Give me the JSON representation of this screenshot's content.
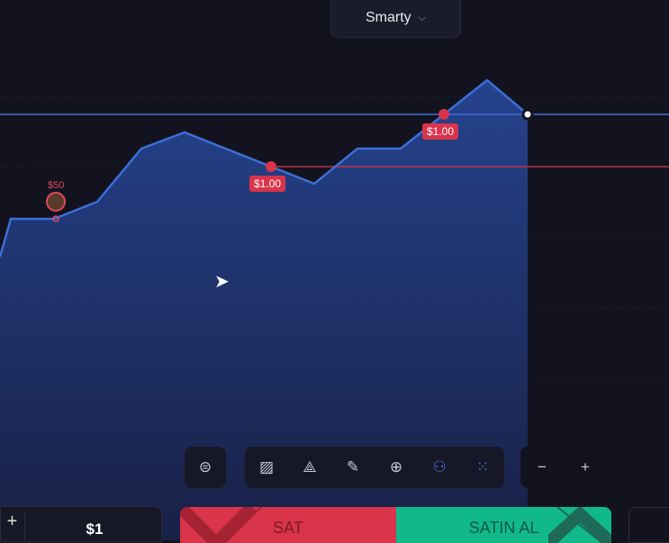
{
  "asset": {
    "name": "Smarty",
    "chevron": "chevron-down-icon"
  },
  "markers": {
    "bet_amount": "$50",
    "tags": [
      "$1.00",
      "$1.00"
    ]
  },
  "toolbar": {
    "icons": [
      "robot-icon",
      "chart-type-icon",
      "drawing-tools-icon",
      "pencil-icon",
      "crosshair-icon",
      "add-user-icon",
      "grid-dots-icon"
    ],
    "zoom_out": "−",
    "zoom_in": "+"
  },
  "bottom": {
    "plus": "+",
    "amount": "$1",
    "sell_label": "SAT",
    "buy_label": "SATIN AL"
  },
  "colors": {
    "line": "#3d6fd6",
    "sell": "#d9344a",
    "buy": "#10b88a",
    "target_line": "#d9344a"
  }
}
